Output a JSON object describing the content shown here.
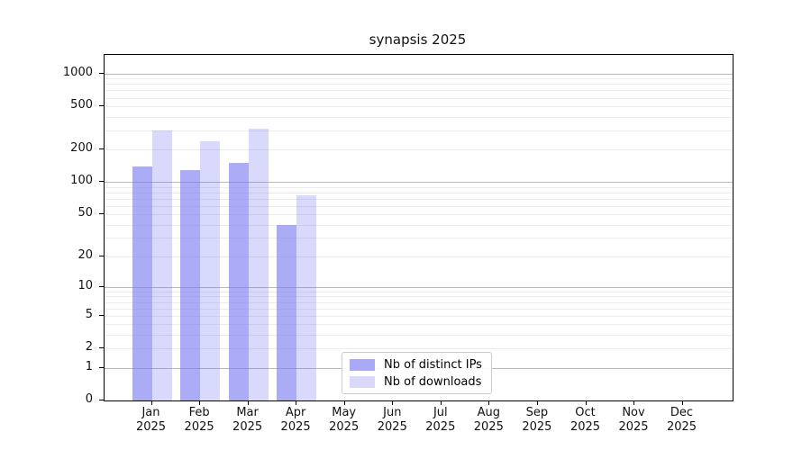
{
  "chart_data": {
    "type": "bar",
    "title": "synapsis 2025",
    "year_label": "2025",
    "categories": [
      "Jan",
      "Feb",
      "Mar",
      "Apr",
      "May",
      "Jun",
      "Jul",
      "Aug",
      "Sep",
      "Oct",
      "Nov",
      "Dec"
    ],
    "series": [
      {
        "name": "Nb of distinct IPs",
        "solid_color": "#a9a9f8",
        "fill_color": "rgba(120,120,240,0.62)",
        "values": [
          140,
          130,
          150,
          40,
          null,
          null,
          null,
          null,
          null,
          null,
          null,
          null
        ]
      },
      {
        "name": "Nb of downloads",
        "solid_color": "#d9d9fb",
        "fill_color": "rgba(120,120,240,0.28)",
        "values": [
          300,
          240,
          310,
          75,
          null,
          null,
          null,
          null,
          null,
          null,
          null,
          null
        ]
      }
    ],
    "y_ticks": [
      0,
      1,
      2,
      5,
      10,
      20,
      50,
      100,
      200,
      500,
      1000
    ],
    "y_scale": "log(value+1)",
    "ylim": [
      0,
      1490
    ],
    "grid": true,
    "grid_major_color": "#b9b9b9",
    "grid_minor_color": "#ececec",
    "legend_position": "inside-bottom-left-of-center"
  }
}
